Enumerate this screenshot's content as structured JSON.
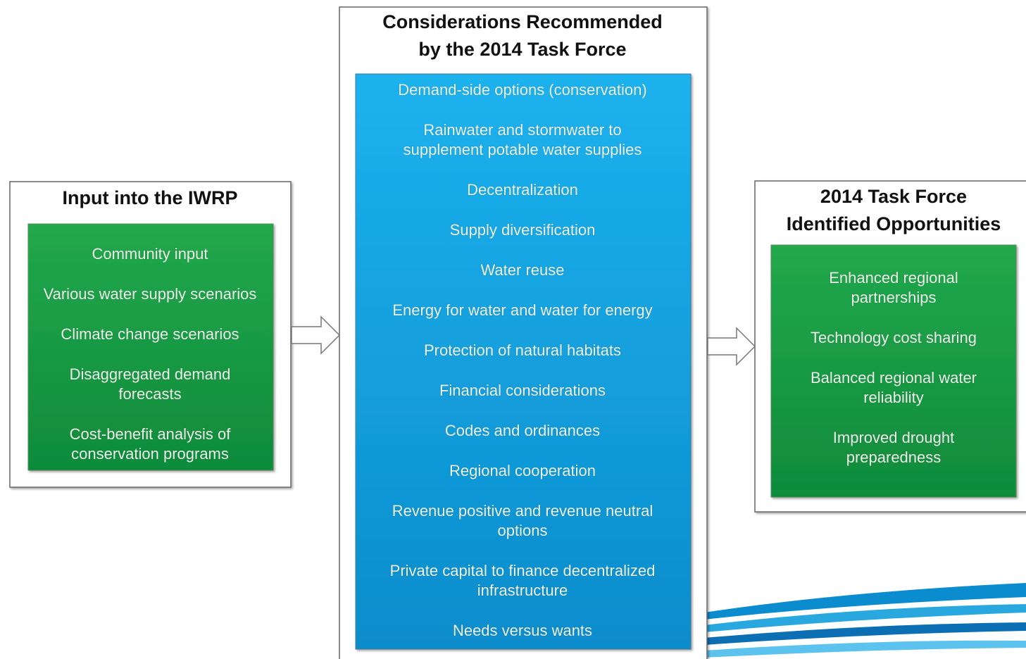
{
  "boxes": [
    {
      "title": [
        "Input into the IWRP"
      ],
      "items": [
        [
          "Community input"
        ],
        [
          "Various water supply scenarios"
        ],
        [
          "Climate change scenarios"
        ],
        [
          "Disaggregated demand",
          "forecasts"
        ],
        [
          "Cost-benefit analysis of",
          "conservation programs"
        ]
      ]
    },
    {
      "title": [
        "Considerations Recommended",
        "by the 2014 Task Force"
      ],
      "items": [
        [
          "Demand-side options (conservation)"
        ],
        [
          "Rainwater and stormwater to",
          "supplement potable water supplies"
        ],
        [
          "Decentralization"
        ],
        [
          "Supply diversification"
        ],
        [
          "Water reuse"
        ],
        [
          "Energy for water and water for energy"
        ],
        [
          "Protection of natural habitats"
        ],
        [
          "Financial considerations"
        ],
        [
          "Codes and ordinances"
        ],
        [
          "Regional cooperation"
        ],
        [
          "Revenue positive and revenue neutral",
          "options"
        ],
        [
          "Private capital to finance decentralized",
          "infrastructure"
        ],
        [
          "Needs versus wants"
        ]
      ]
    },
    {
      "title": [
        "2014 Task Force",
        "Identified Opportunities"
      ],
      "items": [
        [
          "Enhanced regional",
          "partnerships"
        ],
        [
          "Technology cost sharing"
        ],
        [
          "Balanced regional water",
          "reliability"
        ],
        [
          "Improved drought",
          "preparedness"
        ]
      ]
    }
  ]
}
